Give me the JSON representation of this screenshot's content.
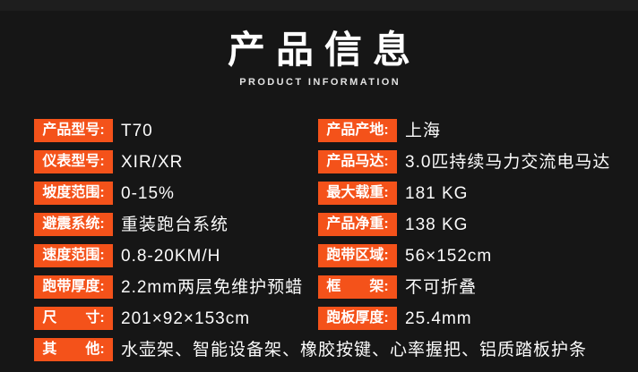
{
  "header": {
    "title": "产品信息",
    "subtitle": "PRODUCT INFORMATION"
  },
  "colors": {
    "background": "#161616",
    "top_strip": "#1e1e1e",
    "badge": "#f4521a",
    "badge_text": "#ffffff",
    "value_text": "#fbfbfb",
    "subtitle_text": "#e2e2e2"
  },
  "spec_table": {
    "left_column": [
      {
        "label": "产品型号:",
        "value": "T70"
      },
      {
        "label": "仪表型号:",
        "value": "XIR/XR"
      },
      {
        "label": "坡度范围:",
        "value": "0-15%"
      },
      {
        "label": "避震系统:",
        "value": "重装跑台系统"
      },
      {
        "label": "速度范围:",
        "value": "0.8-20KM/H"
      },
      {
        "label": "跑带厚度:",
        "value": "2.2mm两层免维护预蜡"
      },
      {
        "label": "尺　　寸:",
        "value": "201×92×153cm"
      },
      {
        "label": "其　　他:",
        "value": "水壶架、智能设备架、橡胶按键、心率握把、铝质踏板护条"
      }
    ],
    "right_column": [
      {
        "label": "产品产地:",
        "value": "上海"
      },
      {
        "label": "产品马达:",
        "value": "3.0匹持续马力交流电马达"
      },
      {
        "label": "最大载重:",
        "value": "181 KG"
      },
      {
        "label": "产品净重:",
        "value": "138 KG"
      },
      {
        "label": "跑带区域:",
        "value": "56×152cm"
      },
      {
        "label": "框　　架:",
        "value": "不可折叠"
      },
      {
        "label": "跑板厚度:",
        "value": "25.4mm"
      }
    ]
  }
}
